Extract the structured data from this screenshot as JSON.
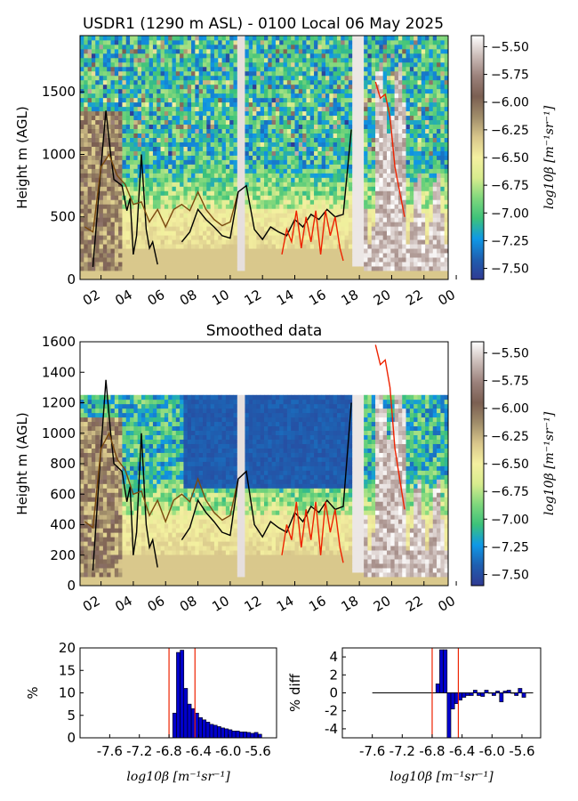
{
  "title": "USDR1 (1290 m ASL) - 0100 Local 06 May 2025",
  "colormap": {
    "stops": [
      "#303a92",
      "#1f5fb0",
      "#0f98e6",
      "#3cc27a",
      "#7fd77c",
      "#d8ec8e",
      "#f4f0a0",
      "#d8c68b",
      "#a08d6a",
      "#7b5f52",
      "#9b817b",
      "#cbbcb8",
      "#ffffff"
    ]
  },
  "charts": [
    {
      "id": "top",
      "title": "",
      "ylabel": "Height m (AGL)",
      "colorbar_label": "log10β [m⁻¹sr⁻¹]",
      "colorbar_ticks": [
        "-5.50",
        "-5.75",
        "-6.00",
        "-6.25",
        "-6.50",
        "-6.75",
        "-7.00",
        "-7.25",
        "-7.50"
      ],
      "ylim": [
        0,
        1950
      ],
      "yticks": [
        "0",
        "500",
        "1000",
        "1500"
      ],
      "xticks": [
        "02",
        "04",
        "06",
        "08",
        "10",
        "12",
        "14",
        "16",
        "18",
        "20",
        "22",
        "00"
      ]
    },
    {
      "id": "smooth",
      "title": "Smoothed data",
      "ylabel": "Height m (AGL)",
      "colorbar_label": "log10β [m⁻¹sr⁻¹]",
      "colorbar_ticks": [
        "-5.50",
        "-5.75",
        "-6.00",
        "-6.25",
        "-6.50",
        "-6.75",
        "-7.00",
        "-7.25",
        "-7.50"
      ],
      "ylim": [
        0,
        1600
      ],
      "yticks": [
        "0",
        "200",
        "400",
        "600",
        "800",
        "1000",
        "1200",
        "1400",
        "1600"
      ],
      "xticks": [
        "02",
        "04",
        "06",
        "08",
        "10",
        "12",
        "14",
        "16",
        "18",
        "20",
        "22",
        "00"
      ]
    }
  ],
  "chart_data": [
    {
      "type": "heatmap",
      "title": "USDR1 (1290 m ASL) - 0100 Local 06 May 2025",
      "xlabel": "",
      "ylabel": "Height m (AGL)",
      "ylim": [
        0,
        1950
      ],
      "colorbar": {
        "label": "log10β [m⁻¹sr⁻¹]",
        "range": [
          -7.6,
          -5.4
        ]
      },
      "series": [
        {
          "color": "#000000",
          "x": [
            1.5,
            2.0,
            2.3,
            2.6,
            2.8,
            3.0,
            3.3,
            3.6,
            3.8,
            4.0,
            4.2,
            4.5,
            4.8,
            5.0,
            5.2,
            5.5
          ],
          "y": [
            100,
            900,
            1350,
            1000,
            800,
            780,
            750,
            550,
            650,
            200,
            350,
            1000,
            400,
            250,
            300,
            120
          ]
        },
        {
          "color": "#7a4a0f",
          "x": [
            1.0,
            1.5,
            2.0,
            2.5,
            3.0,
            3.5,
            4.0,
            4.5,
            5.0,
            5.5,
            6.0,
            6.5,
            7.0,
            7.5,
            8.0,
            8.5,
            9.0,
            9.5,
            10.0,
            10.5
          ],
          "y": [
            420,
            380,
            900,
            1000,
            830,
            760,
            600,
            620,
            460,
            560,
            420,
            560,
            600,
            550,
            700,
            560,
            480,
            430,
            460,
            700
          ]
        },
        {
          "color": "#000000",
          "x": [
            7.0,
            7.5,
            8.0,
            8.5,
            9.0,
            9.5,
            10.0,
            10.5,
            11.0,
            11.5,
            12.0,
            12.5,
            13.0,
            13.5,
            14.0,
            14.5,
            15.0,
            15.5,
            16.0,
            16.5,
            17.0,
            17.5
          ],
          "y": [
            300,
            380,
            560,
            480,
            420,
            350,
            330,
            700,
            750,
            400,
            320,
            420,
            380,
            350,
            480,
            420,
            520,
            480,
            560,
            500,
            520,
            1200
          ]
        },
        {
          "color": "#ee2200",
          "x": [
            13.2,
            13.5,
            13.8,
            14.1,
            14.4,
            14.7,
            15.0,
            15.3,
            15.6,
            15.9,
            16.2,
            16.5,
            16.8,
            17.0
          ],
          "y": [
            200,
            400,
            300,
            550,
            250,
            500,
            300,
            550,
            200,
            550,
            350,
            500,
            250,
            150
          ]
        },
        {
          "color": "#ee2200",
          "x": [
            19.0,
            19.3,
            19.6,
            19.9,
            20.2,
            20.5,
            20.8
          ],
          "y": [
            1580,
            1450,
            1480,
            1300,
            900,
            700,
            500
          ]
        }
      ]
    },
    {
      "type": "heatmap",
      "title": "Smoothed data",
      "xlabel": "",
      "ylabel": "Height m (AGL)",
      "ylim": [
        0,
        1600
      ],
      "colorbar": {
        "label": "log10β [m⁻¹sr⁻¹]",
        "range": [
          -7.6,
          -5.4
        ]
      },
      "series": [
        {
          "color": "#000000",
          "x": [
            1.5,
            2.0,
            2.3,
            2.6,
            2.8,
            3.0,
            3.3,
            3.6,
            3.8,
            4.0,
            4.2,
            4.5,
            4.8,
            5.0,
            5.2,
            5.5
          ],
          "y": [
            100,
            900,
            1350,
            1000,
            800,
            780,
            750,
            550,
            650,
            200,
            350,
            1000,
            400,
            250,
            300,
            120
          ]
        },
        {
          "color": "#7a4a0f",
          "x": [
            1.0,
            1.5,
            2.0,
            2.5,
            3.0,
            3.5,
            4.0,
            4.5,
            5.0,
            5.5,
            6.0,
            6.5,
            7.0,
            7.5,
            8.0,
            8.5,
            9.0,
            9.5,
            10.0,
            10.5
          ],
          "y": [
            420,
            380,
            900,
            1000,
            830,
            760,
            600,
            620,
            460,
            560,
            420,
            560,
            600,
            550,
            700,
            560,
            480,
            430,
            460,
            700
          ]
        },
        {
          "color": "#000000",
          "x": [
            7.0,
            7.5,
            8.0,
            8.5,
            9.0,
            9.5,
            10.0,
            10.5,
            11.0,
            11.5,
            12.0,
            12.5,
            13.0,
            13.5,
            14.0,
            14.5,
            15.0,
            15.5,
            16.0,
            16.5,
            17.0,
            17.5
          ],
          "y": [
            300,
            380,
            560,
            480,
            420,
            350,
            330,
            700,
            750,
            400,
            320,
            420,
            380,
            350,
            480,
            420,
            520,
            480,
            560,
            500,
            520,
            1200
          ]
        },
        {
          "color": "#ee2200",
          "x": [
            13.2,
            13.5,
            13.8,
            14.1,
            14.4,
            14.7,
            15.0,
            15.3,
            15.6,
            15.9,
            16.2,
            16.5,
            16.8,
            17.0
          ],
          "y": [
            200,
            400,
            300,
            550,
            250,
            500,
            300,
            550,
            200,
            550,
            350,
            500,
            250,
            150
          ]
        },
        {
          "color": "#ee2200",
          "x": [
            19.0,
            19.3,
            19.6,
            19.9,
            20.2,
            20.5,
            20.8
          ],
          "y": [
            1580,
            1450,
            1480,
            1300,
            900,
            700,
            500
          ]
        }
      ]
    },
    {
      "type": "bar",
      "title": "",
      "xlabel": "log10β [m⁻¹sr⁻¹]",
      "ylabel": "%",
      "xlim": [
        -8.0,
        -5.35
      ],
      "ylim": [
        0,
        20
      ],
      "xtick_labels": [
        "-7.6",
        "-7.2",
        "-6.8",
        "-6.4",
        "-6.0",
        "-5.6"
      ],
      "ytick_labels": [
        "0",
        "5",
        "10",
        "15",
        "20"
      ],
      "bin_width": 0.05,
      "bin_starts": [
        -6.75,
        -6.7,
        -6.65,
        -6.6,
        -6.55,
        -6.5,
        -6.45,
        -6.4,
        -6.35,
        -6.3,
        -6.25,
        -6.2,
        -6.15,
        -6.1,
        -6.05,
        -6.0,
        -5.95,
        -5.9,
        -5.85,
        -5.8,
        -5.75,
        -5.7,
        -5.65,
        -5.6
      ],
      "values": [
        5.5,
        19,
        19.5,
        11,
        7.5,
        6.5,
        5.5,
        4.5,
        4.0,
        3.5,
        3.0,
        2.8,
        2.5,
        2.2,
        2.0,
        1.8,
        1.5,
        1.5,
        1.3,
        1.3,
        1.2,
        1.0,
        1.2,
        0.8
      ],
      "bar_color": "#0000cc",
      "vlines": [
        -6.8,
        -6.45
      ],
      "vline_color": "#ee2200"
    },
    {
      "type": "bar",
      "title": "",
      "xlabel": "log10β [m⁻¹sr⁻¹]",
      "ylabel": "% diff",
      "xlim": [
        -8.0,
        -5.35
      ],
      "ylim": [
        -5,
        5
      ],
      "xtick_labels": [
        "-7.6",
        "-7.2",
        "-6.8",
        "-6.4",
        "-6.0",
        "-5.6"
      ],
      "ytick_labels": [
        "4",
        "2",
        "0",
        "-2",
        "-4"
      ],
      "bin_width": 0.05,
      "bin_starts": [
        -6.75,
        -6.7,
        -6.65,
        -6.6,
        -6.55,
        -6.5,
        -6.45,
        -6.4,
        -6.35,
        -6.3,
        -6.25,
        -6.2,
        -6.15,
        -6.1,
        -6.05,
        -6.0,
        -5.95,
        -5.9,
        -5.85,
        -5.8,
        -5.75,
        -5.7,
        -5.65,
        -5.6
      ],
      "values": [
        1.0,
        4.8,
        4.8,
        -5.0,
        -1.8,
        -1.2,
        -0.8,
        -0.5,
        -0.3,
        -0.3,
        0.3,
        -0.3,
        -0.4,
        0.3,
        0.0,
        -0.3,
        0.2,
        -1.0,
        0.2,
        0.3,
        0.0,
        -0.3,
        0.5,
        -0.5
      ],
      "baseline_from": -7.6,
      "bar_color": "#0000cc",
      "vlines": [
        -6.8,
        -6.45
      ],
      "vline_color": "#ee2200"
    }
  ]
}
